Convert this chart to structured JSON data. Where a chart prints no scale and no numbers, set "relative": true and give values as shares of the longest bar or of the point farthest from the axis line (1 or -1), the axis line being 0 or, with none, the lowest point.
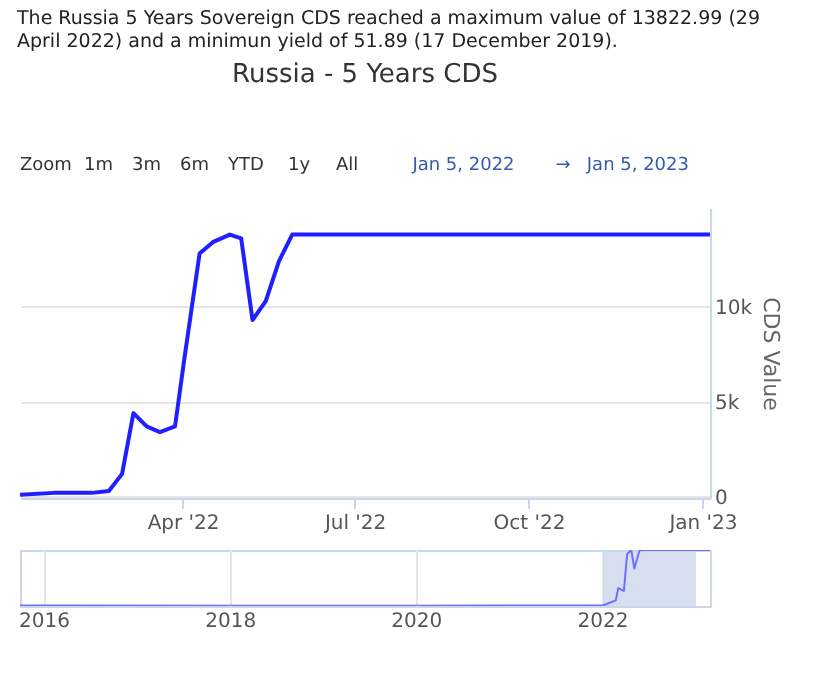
{
  "chart_data": [
    {
      "type": "line",
      "title": "Russia - 5 Years CDS",
      "ylabel": "CDS Value",
      "annotations": [
        "The Russia 5 Years Sovereign CDS reached a maximum value of 13822.99 (29 April 2022) and a minimun yield of 51.89 (17 December 2019).",
        "Zoom",
        "1m",
        "3m",
        "6m",
        "YTD",
        "1y",
        "All",
        "Jan 5, 2022",
        "→",
        "Jan 5, 2023"
      ],
      "x": [
        "2022-01-05",
        "2022-01-23",
        "2022-02-12",
        "2022-02-21",
        "2022-02-28",
        "2022-03-06",
        "2022-03-13",
        "2022-03-20",
        "2022-03-28",
        "2022-04-02",
        "2022-04-10",
        "2022-04-17",
        "2022-04-26",
        "2022-05-02",
        "2022-05-08",
        "2022-05-15",
        "2022-05-22",
        "2022-05-29",
        "2023-01-05"
      ],
      "series": [
        {
          "color": "#1f1fff",
          "values": [
            100,
            200,
            200,
            300,
            1200,
            4400,
            3700,
            3400,
            3700,
            7300,
            12800,
            13400,
            13800,
            13600,
            9300,
            10300,
            12400,
            13800,
            13800
          ]
        }
      ],
      "xlim": [
        "2022-01-05",
        "2023-01-05"
      ],
      "xticks": [
        {
          "value": "2022-04-01",
          "label": "Apr '22"
        },
        {
          "value": "2022-07-01",
          "label": "Jul '22"
        },
        {
          "value": "2022-10-01",
          "label": "Oct '22"
        },
        {
          "value": "2023-01-01",
          "label": "Jan '23"
        }
      ],
      "ylim": [
        -70,
        15200
      ],
      "yticks": [
        0,
        {
          "value": 5000,
          "label": "5k"
        },
        {
          "value": 10000,
          "label": "10k"
        }
      ],
      "grid": "y"
    },
    {
      "type": "line",
      "relative": true,
      "x": [
        "2015-10-01",
        "2019-12-17",
        "2022-01-05",
        "2022-02-24",
        "2022-03-06",
        "2022-03-28",
        "2022-04-10",
        "2022-04-26",
        "2022-05-08",
        "2022-05-29",
        "2023-03-01"
      ],
      "series": [
        {
          "color": "#6f6fff",
          "values": [
            0.01,
            0.004,
            0.01,
            0.1,
            0.32,
            0.27,
            0.93,
            1,
            0.67,
            1,
            1
          ]
        }
      ],
      "xlim": [
        "2015-10-01",
        "2023-03-01"
      ],
      "xticks": [
        "2016",
        "2018",
        "2020",
        "2022"
      ],
      "bands": [
        {
          "axis": "x",
          "from": "2022-01-05",
          "to": "2023-01-05",
          "color": "#ccd6eb"
        }
      ],
      "grid": "x"
    }
  ]
}
